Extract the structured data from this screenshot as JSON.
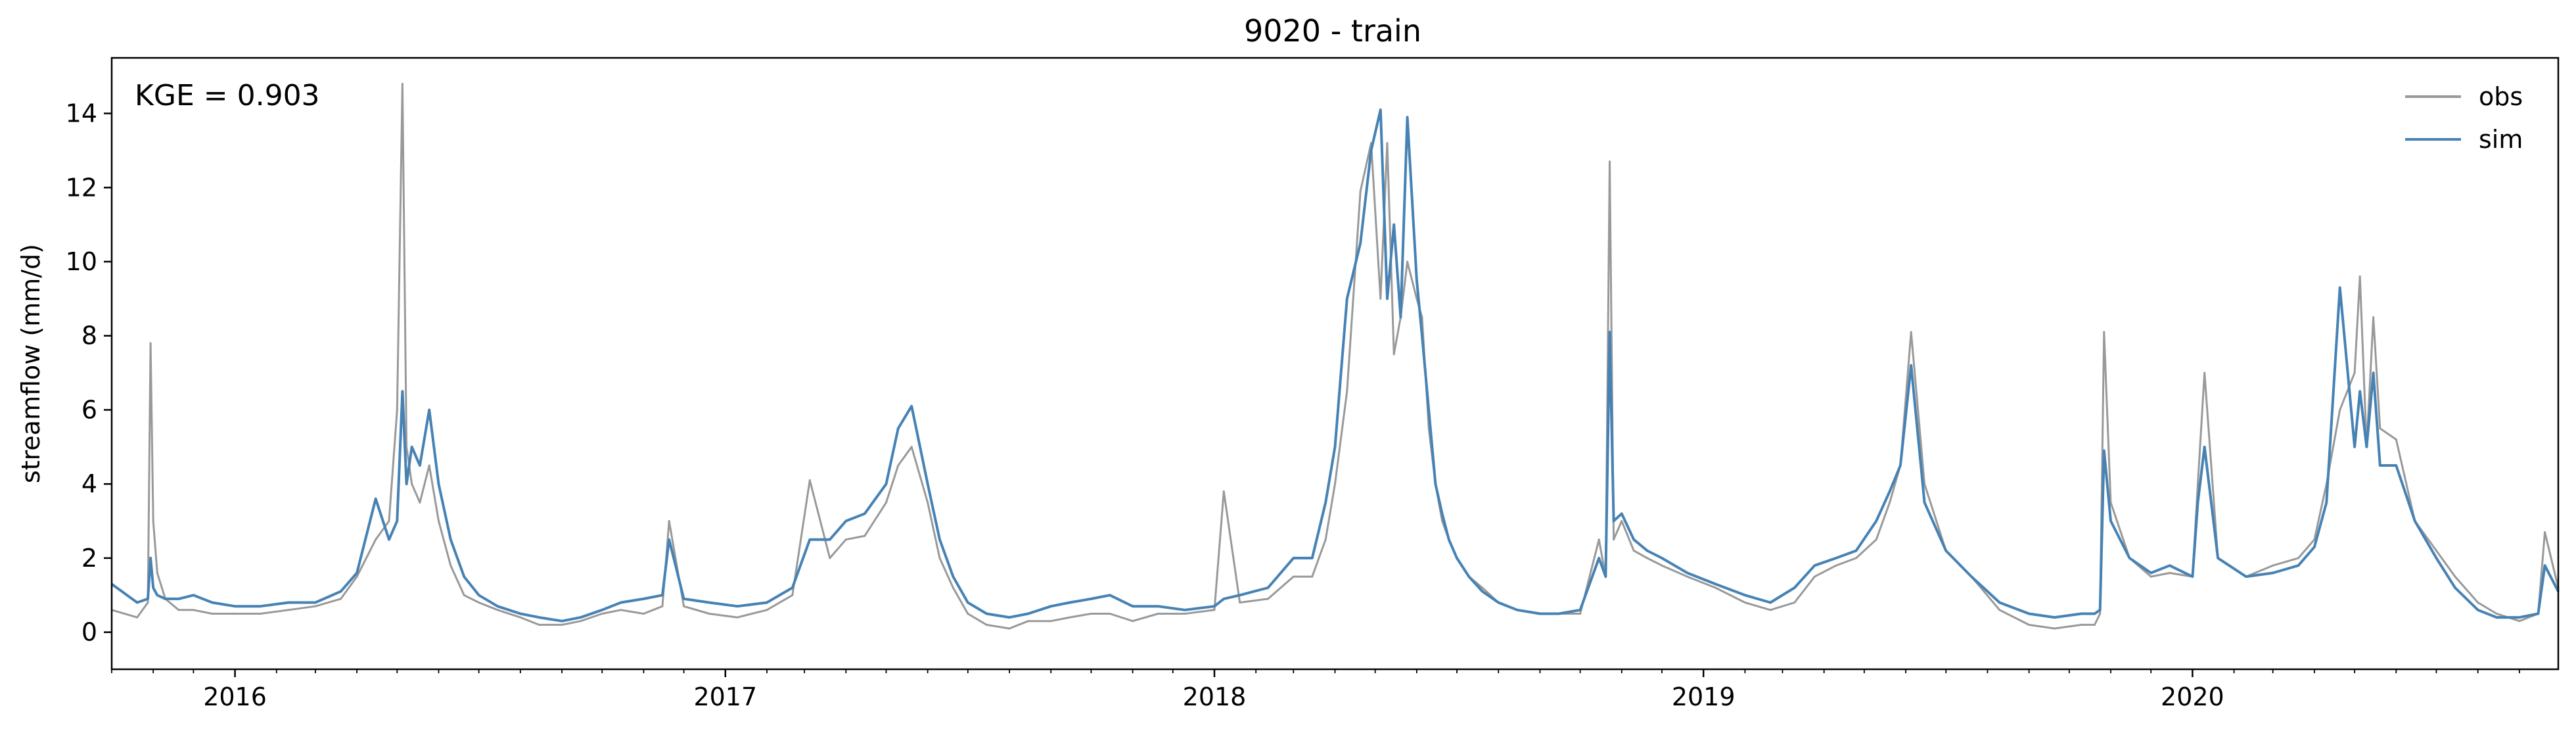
{
  "chart_data": {
    "type": "line",
    "title": "9020 - train",
    "xlabel": "",
    "ylabel": "streamflow (mm/d)",
    "x_range": [
      "2015-10-01",
      "2020-09-30"
    ],
    "ylim": [
      -1.0,
      15.5
    ],
    "y_ticks": [
      0,
      2,
      4,
      6,
      8,
      10,
      12,
      14
    ],
    "x_ticks": [
      "2016",
      "2017",
      "2018",
      "2019",
      "2020"
    ],
    "grid": false,
    "legend_position": "top-right",
    "annotation": "KGE = 0.903",
    "x_dates": [
      "2015-10-01",
      "2015-10-20",
      "2015-10-28",
      "2015-10-30",
      "2015-11-01",
      "2015-11-04",
      "2015-11-10",
      "2015-11-20",
      "2015-12-01",
      "2015-12-15",
      "2016-01-01",
      "2016-01-20",
      "2016-02-10",
      "2016-03-01",
      "2016-03-20",
      "2016-04-01",
      "2016-04-15",
      "2016-04-25",
      "2016-05-01",
      "2016-05-05",
      "2016-05-08",
      "2016-05-12",
      "2016-05-18",
      "2016-05-25",
      "2016-06-01",
      "2016-06-10",
      "2016-06-20",
      "2016-07-01",
      "2016-07-15",
      "2016-08-01",
      "2016-08-15",
      "2016-09-01",
      "2016-09-15",
      "2016-10-01",
      "2016-10-15",
      "2016-11-01",
      "2016-11-15",
      "2016-11-20",
      "2016-12-01",
      "2016-12-20",
      "2017-01-10",
      "2017-02-01",
      "2017-02-20",
      "2017-03-05",
      "2017-03-20",
      "2017-04-01",
      "2017-04-15",
      "2017-05-01",
      "2017-05-10",
      "2017-05-20",
      "2017-06-01",
      "2017-06-10",
      "2017-06-20",
      "2017-07-01",
      "2017-07-15",
      "2017-08-01",
      "2017-08-15",
      "2017-09-01",
      "2017-09-15",
      "2017-10-01",
      "2017-10-15",
      "2017-11-01",
      "2017-11-20",
      "2017-12-10",
      "2018-01-01",
      "2018-01-08",
      "2018-01-20",
      "2018-02-10",
      "2018-03-01",
      "2018-03-15",
      "2018-03-25",
      "2018-04-01",
      "2018-04-10",
      "2018-04-20",
      "2018-04-28",
      "2018-05-05",
      "2018-05-10",
      "2018-05-15",
      "2018-05-20",
      "2018-05-25",
      "2018-06-01",
      "2018-06-05",
      "2018-06-10",
      "2018-06-15",
      "2018-06-20",
      "2018-06-25",
      "2018-07-01",
      "2018-07-10",
      "2018-07-20",
      "2018-08-01",
      "2018-08-15",
      "2018-09-01",
      "2018-09-15",
      "2018-10-01",
      "2018-10-15",
      "2018-10-20",
      "2018-10-23",
      "2018-10-26",
      "2018-11-01",
      "2018-11-10",
      "2018-11-20",
      "2018-12-01",
      "2018-12-20",
      "2019-01-10",
      "2019-02-01",
      "2019-02-20",
      "2019-03-10",
      "2019-03-25",
      "2019-04-10",
      "2019-04-25",
      "2019-05-10",
      "2019-05-20",
      "2019-05-28",
      "2019-06-05",
      "2019-06-15",
      "2019-07-01",
      "2019-07-20",
      "2019-08-10",
      "2019-09-01",
      "2019-09-20",
      "2019-10-10",
      "2019-10-20",
      "2019-10-24",
      "2019-10-27",
      "2019-11-01",
      "2019-11-15",
      "2019-12-01",
      "2019-12-15",
      "2020-01-01",
      "2020-01-05",
      "2020-01-10",
      "2020-01-20",
      "2020-02-10",
      "2020-03-01",
      "2020-03-20",
      "2020-04-01",
      "2020-04-10",
      "2020-04-20",
      "2020-05-01",
      "2020-05-05",
      "2020-05-10",
      "2020-05-15",
      "2020-05-20",
      "2020-06-01",
      "2020-06-15",
      "2020-07-01",
      "2020-07-15",
      "2020-08-01",
      "2020-08-15",
      "2020-09-01",
      "2020-09-15",
      "2020-09-20",
      "2020-09-30"
    ],
    "series": [
      {
        "name": "obs",
        "color": "#999999",
        "values": [
          0.6,
          0.4,
          0.8,
          7.8,
          3.0,
          1.6,
          0.9,
          0.6,
          0.6,
          0.5,
          0.5,
          0.5,
          0.6,
          0.7,
          0.9,
          1.5,
          2.5,
          3.0,
          6.0,
          14.8,
          5.0,
          4.0,
          3.5,
          4.5,
          3.0,
          1.8,
          1.0,
          0.8,
          0.6,
          0.4,
          0.2,
          0.2,
          0.3,
          0.5,
          0.6,
          0.5,
          0.7,
          3.0,
          0.7,
          0.5,
          0.4,
          0.6,
          1.0,
          4.1,
          2.0,
          2.5,
          2.6,
          3.5,
          4.5,
          5.0,
          3.5,
          2.0,
          1.2,
          0.5,
          0.2,
          0.1,
          0.3,
          0.3,
          0.4,
          0.5,
          0.5,
          0.3,
          0.5,
          0.5,
          0.6,
          3.8,
          0.8,
          0.9,
          1.5,
          1.5,
          2.5,
          4.0,
          6.5,
          11.9,
          13.2,
          9.0,
          13.2,
          7.5,
          8.5,
          10.0,
          9.0,
          8.5,
          5.5,
          4.0,
          3.0,
          2.5,
          2.0,
          1.5,
          1.2,
          0.8,
          0.6,
          0.5,
          0.5,
          0.5,
          2.5,
          1.5,
          12.7,
          2.5,
          3.0,
          2.2,
          2.0,
          1.8,
          1.5,
          1.2,
          0.8,
          0.6,
          0.8,
          1.5,
          1.8,
          2.0,
          2.5,
          3.5,
          4.5,
          8.1,
          4.0,
          2.2,
          1.5,
          0.6,
          0.2,
          0.1,
          0.2,
          0.2,
          0.5,
          8.1,
          3.5,
          2.0,
          1.5,
          1.6,
          1.5,
          4.0,
          7.0,
          2.0,
          1.5,
          1.8,
          2.0,
          2.5,
          4.0,
          6.0,
          7.0,
          9.6,
          5.0,
          8.5,
          5.5,
          5.2,
          3.0,
          2.2,
          1.5,
          0.8,
          0.5,
          0.3,
          0.5,
          2.7,
          1.2
        ]
      },
      {
        "name": "sim",
        "color": "#4682b4",
        "values": [
          1.3,
          0.8,
          0.9,
          2.0,
          1.2,
          1.0,
          0.9,
          0.9,
          1.0,
          0.8,
          0.7,
          0.7,
          0.8,
          0.8,
          1.1,
          1.6,
          3.6,
          2.5,
          3.0,
          6.5,
          4.0,
          5.0,
          4.5,
          6.0,
          4.0,
          2.5,
          1.5,
          1.0,
          0.7,
          0.5,
          0.4,
          0.3,
          0.4,
          0.6,
          0.8,
          0.9,
          1.0,
          2.5,
          0.9,
          0.8,
          0.7,
          0.8,
          1.2,
          2.5,
          2.5,
          3.0,
          3.2,
          4.0,
          5.5,
          6.1,
          4.0,
          2.5,
          1.5,
          0.8,
          0.5,
          0.4,
          0.5,
          0.7,
          0.8,
          0.9,
          1.0,
          0.7,
          0.7,
          0.6,
          0.7,
          0.9,
          1.0,
          1.2,
          2.0,
          2.0,
          3.5,
          5.0,
          9.0,
          10.5,
          13.0,
          14.1,
          9.0,
          11.0,
          8.5,
          13.9,
          9.5,
          8.0,
          6.0,
          4.0,
          3.2,
          2.5,
          2.0,
          1.5,
          1.1,
          0.8,
          0.6,
          0.5,
          0.5,
          0.6,
          2.0,
          1.5,
          8.1,
          3.0,
          3.2,
          2.5,
          2.2,
          2.0,
          1.6,
          1.3,
          1.0,
          0.8,
          1.2,
          1.8,
          2.0,
          2.2,
          3.0,
          3.8,
          4.5,
          7.2,
          3.5,
          2.2,
          1.5,
          0.8,
          0.5,
          0.4,
          0.5,
          0.5,
          0.6,
          4.9,
          3.0,
          2.0,
          1.6,
          1.8,
          1.5,
          3.5,
          5.0,
          2.0,
          1.5,
          1.6,
          1.8,
          2.3,
          3.5,
          9.3,
          5.0,
          6.5,
          5.0,
          7.0,
          4.5,
          4.5,
          3.0,
          2.0,
          1.2,
          0.6,
          0.4,
          0.4,
          0.5,
          1.8,
          1.1
        ]
      }
    ]
  }
}
